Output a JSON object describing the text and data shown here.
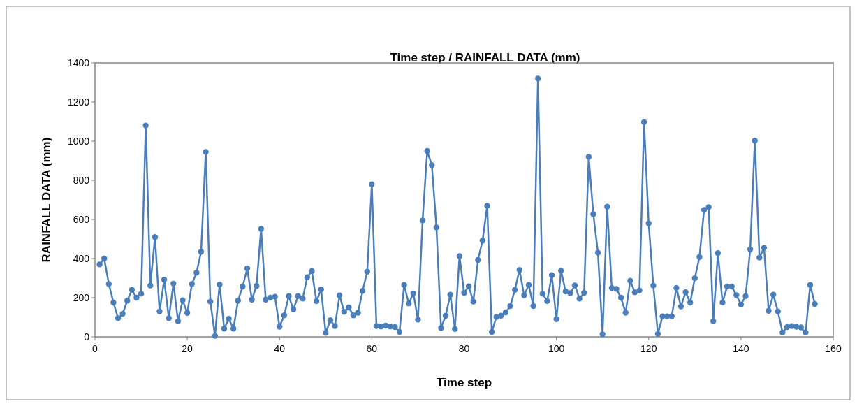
{
  "chart_data": {
    "type": "line",
    "title": "Time step / RAINFALL DATA (mm)",
    "xlabel": "Time step",
    "ylabel": "RAINFALL DATA (mm)",
    "x": [
      1,
      2,
      3,
      4,
      5,
      6,
      7,
      8,
      9,
      10,
      11,
      12,
      13,
      14,
      15,
      16,
      17,
      18,
      19,
      20,
      21,
      22,
      23,
      24,
      25,
      26,
      27,
      28,
      29,
      30,
      31,
      32,
      33,
      34,
      35,
      36,
      37,
      38,
      39,
      40,
      41,
      42,
      43,
      44,
      45,
      46,
      47,
      48,
      49,
      50,
      51,
      52,
      53,
      54,
      55,
      56,
      57,
      58,
      59,
      60,
      61,
      62,
      63,
      64,
      65,
      66,
      67,
      68,
      69,
      70,
      71,
      72,
      73,
      74,
      75,
      76,
      77,
      78,
      79,
      80,
      81,
      82,
      83,
      84,
      85,
      86,
      87,
      88,
      89,
      90,
      91,
      92,
      93,
      94,
      95,
      96,
      97,
      98,
      99,
      100,
      101,
      102,
      103,
      104,
      105,
      106,
      107,
      108,
      109,
      110,
      111,
      112,
      113,
      114,
      115,
      116,
      117,
      118,
      119,
      120,
      121,
      122,
      123,
      124,
      125,
      126,
      127,
      128,
      129,
      130,
      131,
      132,
      133,
      134,
      135,
      136,
      137,
      138,
      139,
      140,
      141,
      142,
      143,
      144,
      145,
      146,
      147,
      148,
      149,
      150,
      151,
      152,
      153,
      154,
      155,
      156
    ],
    "series": [
      {
        "color": "#4a7ebb",
        "values": [
          370,
          400,
          270,
          175,
          95,
          118,
          185,
          240,
          200,
          220,
          1080,
          262,
          510,
          130,
          292,
          95,
          272,
          80,
          187,
          122,
          270,
          328,
          435,
          945,
          180,
          5,
          268,
          42,
          92,
          42,
          185,
          257,
          350,
          190,
          260,
          552,
          190,
          200,
          205,
          52,
          110,
          208,
          140,
          208,
          195,
          305,
          336,
          182,
          242,
          20,
          85,
          55,
          212,
          128,
          150,
          110,
          123,
          235,
          333,
          780,
          55,
          53,
          57,
          53,
          50,
          25,
          265,
          170,
          222,
          88,
          595,
          950,
          878,
          560,
          45,
          108,
          215,
          40,
          413,
          225,
          258,
          180,
          393,
          492,
          670,
          25,
          102,
          108,
          125,
          157,
          240,
          342,
          212,
          265,
          157,
          1320,
          220,
          183,
          315,
          90,
          338,
          232,
          223,
          263,
          195,
          225,
          920,
          627,
          430,
          13,
          665,
          250,
          245,
          200,
          123,
          287,
          228,
          237,
          1097,
          580,
          262,
          15,
          105,
          105,
          105,
          250,
          155,
          228,
          175,
          300,
          408,
          648,
          663,
          80,
          428,
          175,
          257,
          257,
          213,
          165,
          208,
          447,
          1003,
          405,
          455,
          133,
          215,
          130,
          22,
          50,
          55,
          52,
          48,
          22,
          265,
          168
        ]
      }
    ],
    "xlim": [
      0,
      160
    ],
    "xticks": [
      0,
      20,
      40,
      60,
      80,
      100,
      120,
      140,
      160
    ],
    "ylim": [
      0,
      1400
    ],
    "yticks": [
      0,
      200,
      400,
      600,
      800,
      1000,
      1200,
      1400
    ],
    "grid": false,
    "marker": "circle",
    "line_style": "solid"
  }
}
